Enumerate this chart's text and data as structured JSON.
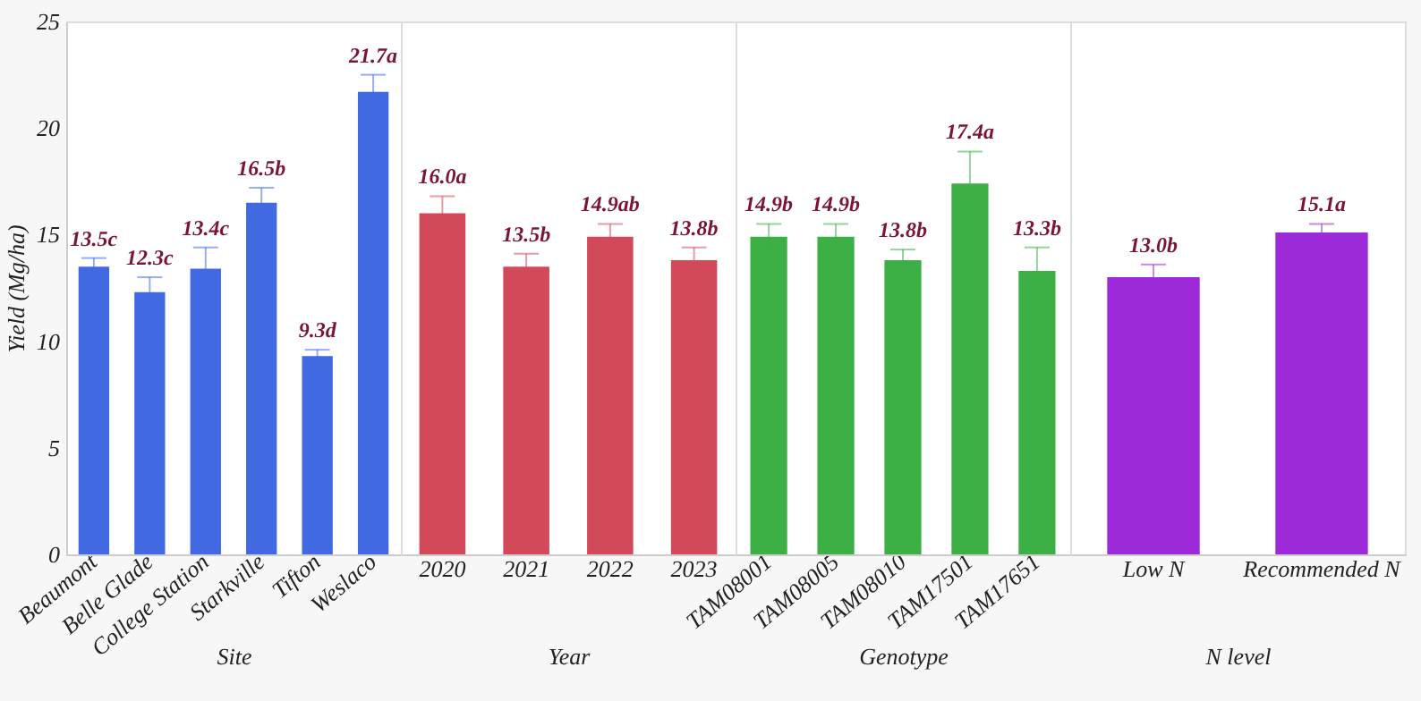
{
  "chart_data": [
    {
      "type": "bar",
      "xlabel": "Site",
      "ylabel": "Yield (Mg/ha)",
      "categories": [
        "Beaumont",
        "Belle Glade",
        "College Station",
        "Starkville",
        "Tifton",
        "Weslaco"
      ],
      "values": [
        13.5,
        12.3,
        13.4,
        16.5,
        9.3,
        21.7
      ],
      "errors": [
        0.4,
        0.7,
        1.0,
        0.7,
        0.3,
        0.8
      ],
      "value_labels": [
        "13.5c",
        "12.3c",
        "13.4c",
        "16.5b",
        "9.3d",
        "21.7a"
      ],
      "color": "#4169e1",
      "ylim": [
        0,
        25
      ],
      "yticks": [
        0,
        5,
        10,
        15,
        20,
        25
      ],
      "grid": false
    },
    {
      "type": "bar",
      "xlabel": "Year",
      "categories": [
        "2020",
        "2021",
        "2022",
        "2023"
      ],
      "values": [
        16.0,
        13.5,
        14.9,
        13.8
      ],
      "errors": [
        0.8,
        0.6,
        0.6,
        0.6
      ],
      "value_labels": [
        "16.0a",
        "13.5b",
        "14.9ab",
        "13.8b"
      ],
      "color": "#d24a5a",
      "ylim": [
        0,
        25
      ],
      "yticks": [
        0,
        5,
        10,
        15,
        20,
        25
      ],
      "grid": false,
      "tick_labels": "x"
    },
    {
      "type": "bar",
      "xlabel": "Genotype",
      "categories": [
        "TAM08001",
        "TAM08005",
        "TAM08010",
        "TAM17501",
        "TAM17651"
      ],
      "values": [
        14.9,
        14.9,
        13.8,
        17.4,
        13.3
      ],
      "errors": [
        0.6,
        0.6,
        0.5,
        1.5,
        1.1
      ],
      "value_labels": [
        "14.9b",
        "14.9b",
        "13.8b",
        "17.4a",
        "13.3b"
      ],
      "color": "#3caf45",
      "ylim": [
        0,
        25
      ],
      "yticks": [
        0,
        5,
        10,
        15,
        20,
        25
      ],
      "grid": false,
      "tick_labels": "x"
    },
    {
      "type": "bar",
      "xlabel": "N level",
      "categories": [
        "Low N",
        "Recommended N"
      ],
      "values": [
        13.0,
        15.1
      ],
      "errors": [
        0.6,
        0.4
      ],
      "value_labels": [
        "13.0b",
        "15.1a"
      ],
      "color": "#9d2ad9",
      "ylim": [
        0,
        25
      ],
      "yticks": [
        0,
        5,
        10,
        15,
        20,
        25
      ],
      "grid": false,
      "tick_labels": "x"
    }
  ]
}
